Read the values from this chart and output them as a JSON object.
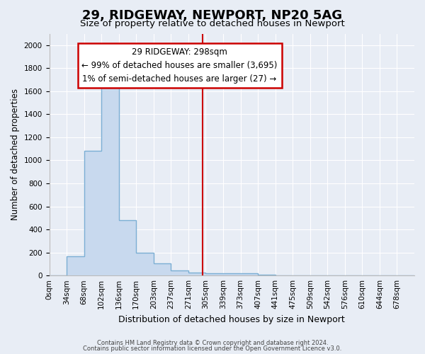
{
  "title": "29, RIDGEWAY, NEWPORT, NP20 5AG",
  "subtitle": "Size of property relative to detached houses in Newport",
  "xlabel": "Distribution of detached houses by size in Newport",
  "ylabel": "Number of detached properties",
  "bar_fill_color": "#c8d9ee",
  "bar_edge_color": "#7bafd4",
  "background_color": "#e8edf5",
  "grid_color": "#ffffff",
  "categories": [
    "0sqm",
    "34sqm",
    "68sqm",
    "102sqm",
    "136sqm",
    "170sqm",
    "203sqm",
    "237sqm",
    "271sqm",
    "305sqm",
    "339sqm",
    "373sqm",
    "407sqm",
    "441sqm",
    "475sqm",
    "509sqm",
    "542sqm",
    "576sqm",
    "610sqm",
    "644sqm",
    "678sqm"
  ],
  "values": [
    0,
    165,
    1085,
    1630,
    480,
    200,
    105,
    45,
    28,
    20,
    20,
    20,
    5,
    0,
    0,
    0,
    0,
    0,
    0,
    0,
    0
  ],
  "ylim": [
    0,
    2100
  ],
  "yticks": [
    0,
    200,
    400,
    600,
    800,
    1000,
    1200,
    1400,
    1600,
    1800,
    2000
  ],
  "vline_color": "#cc0000",
  "annotation_text": "29 RIDGEWAY: 298sqm\n← 99% of detached houses are smaller (3,695)\n1% of semi-detached houses are larger (27) →",
  "annotation_box_color": "#cc0000",
  "footer1": "Contains HM Land Registry data © Crown copyright and database right 2024.",
  "footer2": "Contains public sector information licensed under the Open Government Licence v3.0.",
  "title_fontsize": 13,
  "subtitle_fontsize": 9.5,
  "ylabel_fontsize": 8.5,
  "xlabel_fontsize": 9,
  "tick_fontsize": 7.5,
  "annotation_fontsize": 8.5,
  "footer_fontsize": 6
}
